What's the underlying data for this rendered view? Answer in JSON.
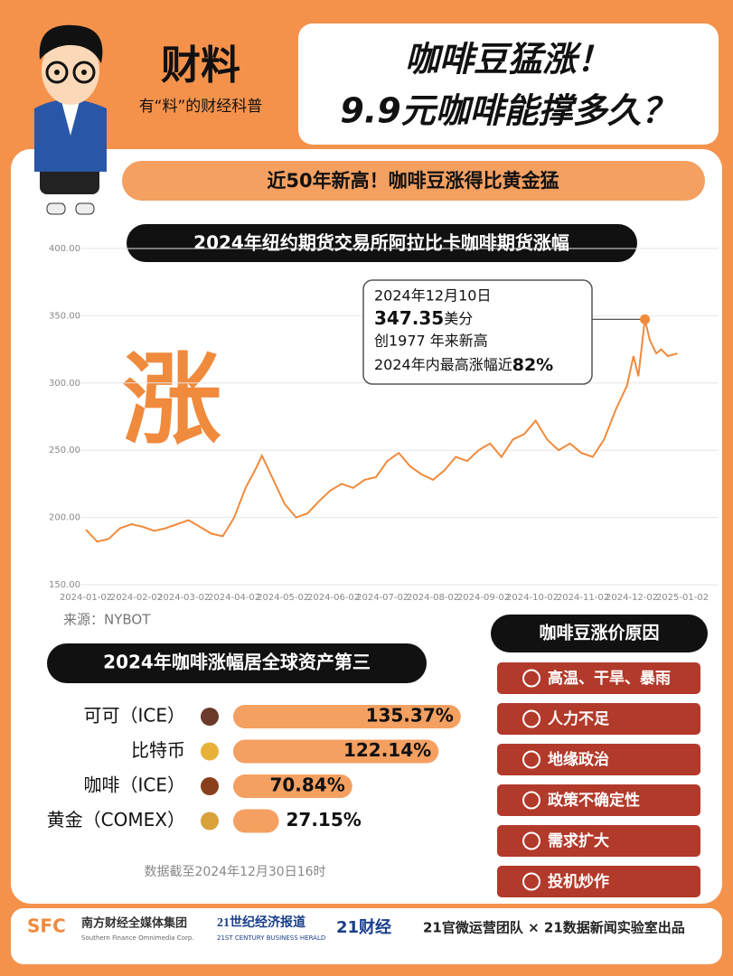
{
  "header": {
    "brand": "财料",
    "tagline": "有“料”的财经科普",
    "title": [
      "咖啡豆猛涨！",
      "9.9元咖啡能撑多久？"
    ]
  },
  "banner": "近50年新高！咖啡豆涨得比黄金猛",
  "decoration_text": "涨",
  "chart_data": [
    {
      "type": "line",
      "title": "2024年纽约期货交易所阿拉比卡咖啡期货涨幅",
      "source": "来源：NYBOT",
      "color": "#f08a3c",
      "grid": true,
      "ylim": [
        150,
        400
      ],
      "yticks": [
        {
          "value": 150,
          "label": "150.00"
        },
        {
          "value": 200,
          "label": "200.00"
        },
        {
          "value": 250,
          "label": "250.00"
        },
        {
          "value": 300,
          "label": "300.00"
        },
        {
          "value": 350,
          "label": "350.00"
        },
        {
          "value": 400,
          "label": "400.00"
        }
      ],
      "xlim": [
        "2024-01-02",
        "2025-01-02"
      ],
      "xticks": [
        "2024-01-02",
        "2024-02-02",
        "2024-03-02",
        "2024-04-02",
        "2024-05-02",
        "2024-06-02",
        "2024-07-02",
        "2024-08-02",
        "2024-09-02",
        "2024-10-02",
        "2024-11-02",
        "2024-12-02",
        "2025-01-02"
      ],
      "x": [
        "2024-01-02",
        "2024-01-09",
        "2024-01-16",
        "2024-01-23",
        "2024-01-30",
        "2024-02-06",
        "2024-02-13",
        "2024-02-20",
        "2024-02-27",
        "2024-03-05",
        "2024-03-12",
        "2024-03-19",
        "2024-03-26",
        "2024-04-02",
        "2024-04-09",
        "2024-04-16",
        "2024-04-19",
        "2024-04-26",
        "2024-05-03",
        "2024-05-10",
        "2024-05-17",
        "2024-05-24",
        "2024-05-31",
        "2024-06-07",
        "2024-06-14",
        "2024-06-21",
        "2024-06-28",
        "2024-07-05",
        "2024-07-12",
        "2024-07-19",
        "2024-07-26",
        "2024-08-02",
        "2024-08-09",
        "2024-08-16",
        "2024-08-23",
        "2024-08-30",
        "2024-09-06",
        "2024-09-13",
        "2024-09-20",
        "2024-09-27",
        "2024-10-04",
        "2024-10-11",
        "2024-10-18",
        "2024-10-25",
        "2024-11-01",
        "2024-11-08",
        "2024-11-15",
        "2024-11-22",
        "2024-11-29",
        "2024-12-03",
        "2024-12-06",
        "2024-12-10",
        "2024-12-13",
        "2024-12-17",
        "2024-12-20",
        "2024-12-24",
        "2024-12-30"
      ],
      "values": [
        191,
        182,
        184,
        192,
        195,
        193,
        190,
        192,
        195,
        198,
        193,
        188,
        186,
        200,
        222,
        238,
        246,
        228,
        210,
        200,
        203,
        212,
        220,
        225,
        222,
        228,
        230,
        242,
        248,
        238,
        232,
        228,
        235,
        245,
        242,
        250,
        255,
        245,
        258,
        262,
        272,
        258,
        250,
        255,
        248,
        245,
        258,
        280,
        298,
        320,
        305,
        347.35,
        332,
        322,
        325,
        320,
        322
      ],
      "highlight": {
        "x": "2024-12-10",
        "value": 347.35,
        "date_label": "2024年12月10日",
        "unit": "美分",
        "lines": [
          "创1977 年来新高",
          "2024年内最高涨幅近",
          "82%"
        ]
      }
    },
    {
      "type": "hbar",
      "title": "2024年咖啡涨幅居全球资产第三",
      "note": "数据截至2024年12月30日16时",
      "color": "#f4a061",
      "categories": [
        "可可（ICE）",
        "比特币",
        "咖啡（ICE）",
        "黄金（COMEX）"
      ],
      "values": [
        135.37,
        122.14,
        70.84,
        27.15
      ],
      "value_labels": [
        "135.37%",
        "122.14%",
        "70.84%",
        "27.15%"
      ]
    }
  ],
  "reasons": {
    "title": "咖啡豆涨价原因",
    "items": [
      "高温、干旱、暴雨",
      "人力不足",
      "地缘政治",
      "政策不确定性",
      "需求扩大",
      "投机炒作"
    ]
  },
  "footer": {
    "sfc": "SFC",
    "sfc_name": "南方财经全媒体集团",
    "sfc_en": "Southern Finance Omnimedia Corp.",
    "herald": "21世纪经济报道",
    "herald_en": "21ST CENTURY BUSINESS HERALD",
    "caijing": "21财经",
    "credit": "21官微运营团队 × 21数据新闻实验室出品"
  }
}
